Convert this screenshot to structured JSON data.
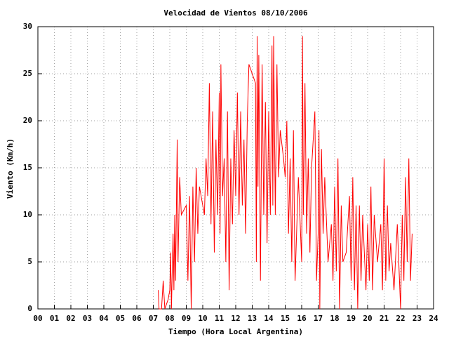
{
  "chart_data": {
    "type": "line",
    "title": "Velocidad de Vientos 08/10/2006",
    "x_label": "Tiempo (Hora Local Argentina)",
    "y_label": "Viento (Km/h)",
    "xlim": [
      0,
      24
    ],
    "ylim": [
      0,
      30
    ],
    "xticks": [
      {
        "value": 0,
        "label": "00"
      },
      {
        "value": 1,
        "label": "01"
      },
      {
        "value": 2,
        "label": "02"
      },
      {
        "value": 3,
        "label": "03"
      },
      {
        "value": 4,
        "label": "04"
      },
      {
        "value": 5,
        "label": "05"
      },
      {
        "value": 6,
        "label": "06"
      },
      {
        "value": 7,
        "label": "07"
      },
      {
        "value": 8,
        "label": "08"
      },
      {
        "value": 9,
        "label": "09"
      },
      10,
      11,
      12,
      13,
      14,
      15,
      16,
      17,
      18,
      19,
      20,
      21,
      22,
      23,
      24
    ],
    "yticks": [
      0,
      5,
      10,
      15,
      20,
      25,
      30
    ],
    "grid": true,
    "x": [
      7.3,
      7.35,
      7.5,
      7.6,
      7.7,
      7.9,
      8.0,
      8.05,
      8.1,
      8.2,
      8.25,
      8.3,
      8.35,
      8.45,
      8.5,
      8.6,
      8.7,
      9.0,
      9.1,
      9.2,
      9.3,
      9.4,
      9.5,
      9.6,
      9.7,
      9.8,
      10.1,
      10.2,
      10.3,
      10.4,
      10.5,
      10.6,
      10.7,
      10.8,
      10.9,
      11.0,
      11.05,
      11.1,
      11.2,
      11.3,
      11.4,
      11.5,
      11.6,
      11.7,
      11.8,
      11.9,
      12.0,
      12.1,
      12.2,
      12.3,
      12.4,
      12.5,
      12.6,
      12.7,
      12.8,
      13.2,
      13.25,
      13.3,
      13.35,
      13.4,
      13.5,
      13.6,
      13.7,
      13.8,
      13.9,
      14.0,
      14.1,
      14.2,
      14.25,
      14.3,
      14.4,
      14.5,
      14.6,
      14.7,
      14.9,
      15.0,
      15.1,
      15.2,
      15.3,
      15.4,
      15.5,
      15.6,
      15.8,
      16.0,
      16.05,
      16.1,
      16.2,
      16.3,
      16.4,
      16.5,
      16.6,
      16.8,
      16.9,
      17.0,
      17.05,
      17.1,
      17.2,
      17.3,
      17.4,
      17.6,
      17.8,
      17.9,
      18.0,
      18.1,
      18.2,
      18.3,
      18.4,
      18.5,
      18.7,
      18.9,
      19.0,
      19.1,
      19.2,
      19.3,
      19.4,
      19.5,
      19.6,
      19.7,
      19.9,
      20.0,
      20.1,
      20.2,
      20.3,
      20.4,
      20.6,
      20.8,
      20.9,
      21.0,
      21.1,
      21.2,
      21.3,
      21.4,
      21.6,
      21.8,
      22.0,
      22.1,
      22.2,
      22.3,
      22.4,
      22.5,
      22.6,
      22.7
    ],
    "series": [
      {
        "color": "#ff0000",
        "values": [
          2,
          0,
          0,
          3,
          0,
          1,
          2,
          6,
          0,
          8,
          2,
          10,
          3,
          18,
          5,
          14,
          10,
          11,
          3,
          12,
          0,
          13,
          5,
          15,
          8,
          13,
          10,
          16,
          12,
          24,
          9,
          21,
          6,
          18,
          10,
          23,
          8,
          26,
          12,
          16,
          5,
          21,
          2,
          16,
          9,
          19,
          12,
          23,
          10,
          21,
          11,
          18,
          8,
          20,
          26,
          24,
          5,
          29,
          13,
          27,
          3,
          26,
          10,
          22,
          7,
          21,
          10,
          28,
          11,
          29,
          10,
          26,
          14,
          19,
          16,
          14,
          20,
          8,
          16,
          5,
          19,
          3,
          14,
          5,
          29,
          10,
          24,
          8,
          16,
          6,
          15,
          21,
          3,
          8,
          19,
          0,
          17,
          8,
          14,
          5,
          9,
          3,
          13,
          4,
          16,
          0,
          11,
          5,
          6,
          12,
          3,
          14,
          2,
          11,
          0,
          11,
          3,
          10,
          2,
          9,
          3,
          13,
          2,
          10,
          5,
          9,
          2,
          16,
          3,
          11,
          4,
          7,
          2,
          9,
          0,
          10,
          3,
          14,
          5,
          16,
          3,
          8
        ]
      }
    ]
  }
}
